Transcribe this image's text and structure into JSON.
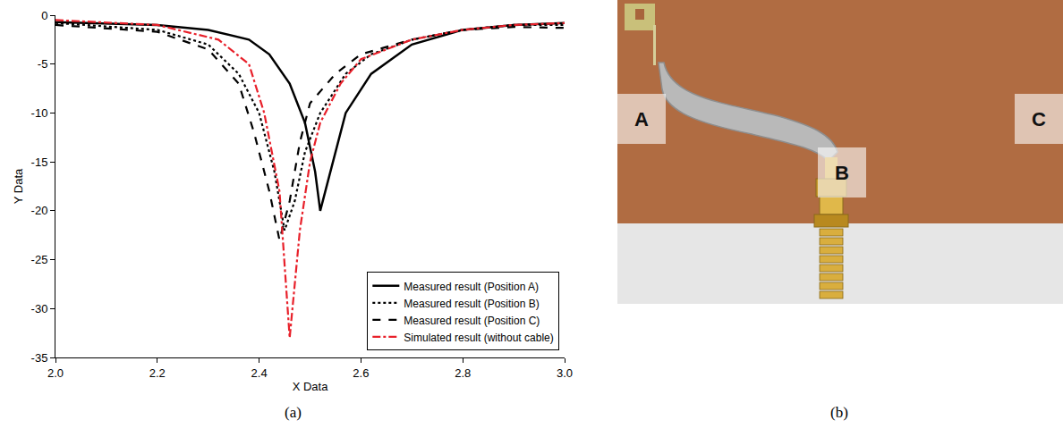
{
  "chart_data": {
    "type": "line",
    "x_label": "X Data",
    "y_label": "Y Data",
    "xlim": [
      2.0,
      3.0
    ],
    "xticks": [
      {
        "value": 2.0,
        "label": "2.0"
      },
      2.2,
      2.4,
      2.6,
      2.8,
      {
        "value": 3.0,
        "label": "3.0"
      }
    ],
    "ylim": [
      -35,
      0
    ],
    "yticks": [
      -35,
      -30,
      -25,
      -20,
      -15,
      -10,
      -5,
      0
    ],
    "grid": false,
    "legend": "lower right",
    "series": [
      {
        "name": "Measured result (Position A)",
        "color": "#000000",
        "line_style": "solid",
        "x": [
          2.0,
          2.2,
          2.3,
          2.38,
          2.42,
          2.46,
          2.49,
          2.51,
          2.52,
          2.54,
          2.57,
          2.62,
          2.7,
          2.8,
          2.9,
          3.0
        ],
        "values": [
          -0.7,
          -1,
          -1.5,
          -2.5,
          -4,
          -7,
          -11,
          -16,
          -20,
          -16,
          -10,
          -6,
          -3,
          -1.5,
          -1,
          -0.8
        ]
      },
      {
        "name": "Measured result (Position B)",
        "color": "#000000",
        "line_style": "dot",
        "x": [
          2.0,
          2.2,
          2.3,
          2.36,
          2.4,
          2.43,
          2.45,
          2.47,
          2.49,
          2.52,
          2.57,
          2.62,
          2.7,
          2.8,
          2.9,
          3.0
        ],
        "values": [
          -0.8,
          -1.5,
          -3,
          -6,
          -10,
          -16,
          -22,
          -19,
          -14,
          -10,
          -6,
          -4,
          -2.5,
          -1.5,
          -1,
          -1
        ]
      },
      {
        "name": "Measured result (Position C)",
        "color": "#000000",
        "line_style": "dash",
        "x": [
          2.0,
          2.2,
          2.3,
          2.36,
          2.39,
          2.42,
          2.44,
          2.46,
          2.48,
          2.5,
          2.55,
          2.6,
          2.7,
          2.8,
          2.9,
          3.0
        ],
        "values": [
          -1,
          -1.7,
          -3.5,
          -7,
          -12,
          -18,
          -23,
          -19,
          -13,
          -9,
          -6,
          -4,
          -2.5,
          -1.5,
          -1.2,
          -1.3
        ]
      },
      {
        "name": "Simulated result (without cable)",
        "color": "#e8202a",
        "line_style": "dashdot",
        "x": [
          2.0,
          2.2,
          2.32,
          2.38,
          2.41,
          2.44,
          2.46,
          2.48,
          2.5,
          2.52,
          2.56,
          2.6,
          2.7,
          2.8,
          2.9,
          3.0
        ],
        "values": [
          -0.5,
          -1,
          -2.5,
          -5,
          -10,
          -18,
          -33,
          -22,
          -15,
          -11,
          -7,
          -4.5,
          -2.5,
          -1.5,
          -1,
          -0.8
        ]
      }
    ]
  },
  "panel_labels": [
    "(a)",
    "(b)"
  ],
  "photo_labels": [
    "A",
    "B",
    "C"
  ]
}
